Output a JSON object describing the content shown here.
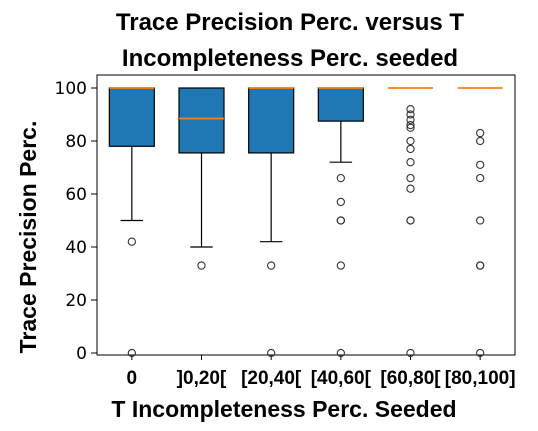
{
  "chart_data": {
    "type": "box",
    "title": [
      "Trace Precision Perc. versus T",
      "Incompleteness Perc. seeded"
    ],
    "xlabel": "T Incompleteness Perc. Seeded",
    "ylabel": "Trace Precision Perc.",
    "ylim": [
      0,
      105
    ],
    "yticks": [
      "0",
      "20",
      "40",
      "60",
      "80",
      "100"
    ],
    "categories": [
      "0",
      "]0,20[",
      "[20,40[",
      "[40,60[",
      "[60,80[",
      "[80,100]"
    ],
    "boxes": [
      {
        "q1": 78,
        "median": 100,
        "q3": 100,
        "whisker_low": 50,
        "whisker_high": 100,
        "outliers": [
          42,
          0
        ]
      },
      {
        "q1": 75.5,
        "median": 88.5,
        "q3": 100,
        "whisker_low": 40,
        "whisker_high": 100,
        "outliers": [
          33
        ]
      },
      {
        "q1": 75.5,
        "median": 100,
        "q3": 100,
        "whisker_low": 42,
        "whisker_high": 100,
        "outliers": [
          33,
          0
        ]
      },
      {
        "q1": 87.5,
        "median": 100,
        "q3": 100,
        "whisker_low": 72,
        "whisker_high": 100,
        "outliers": [
          66,
          57,
          50,
          50,
          33,
          0
        ]
      },
      {
        "q1": 100,
        "median": 100,
        "q3": 100,
        "whisker_low": 100,
        "whisker_high": 100,
        "outliers": [
          92,
          90,
          88,
          86,
          85,
          80,
          77,
          72,
          66,
          62,
          50,
          50,
          0
        ]
      },
      {
        "q1": 100,
        "median": 100,
        "q3": 100,
        "whisker_low": 100,
        "whisker_high": 100,
        "outliers": [
          83,
          80,
          71,
          66,
          50,
          33,
          33,
          0
        ]
      }
    ],
    "colors": {
      "box_fill": "#1f77b4",
      "median": "#ff7f0e",
      "line": "#000000",
      "outlier_stroke": "#333333"
    },
    "grid": false,
    "legend": "none"
  }
}
